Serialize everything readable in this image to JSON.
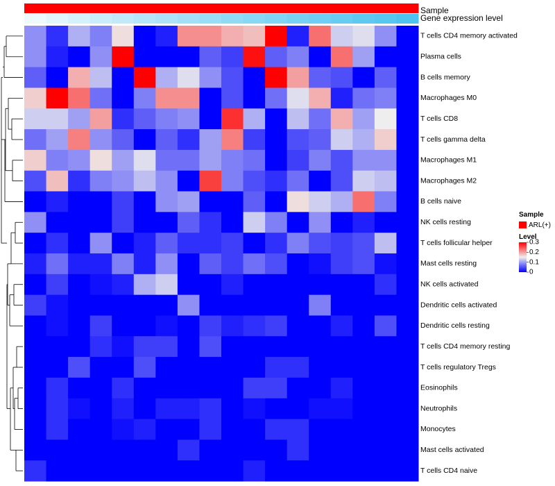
{
  "chart_data": {
    "type": "heatmap",
    "title": "",
    "annotation_tracks": [
      {
        "name": "Sample",
        "value": "ARL(+)",
        "color": "#ff0000"
      },
      {
        "name": "Gene expression level",
        "value": "increasing",
        "color_low": "#ffffff",
        "color_high": "#4fc3f0"
      }
    ],
    "rows": [
      "T cells CD4 memory activated",
      "Plasma cells",
      "B cells memory",
      "Macrophages M0",
      "T cells CD8",
      "T cells gamma delta",
      "Macrophages M1",
      "Macrophages M2",
      "B cells naive",
      "NK cells resting",
      "T cells follicular helper",
      "Mast cells resting",
      "NK cells activated",
      "Dendritic cells activated",
      "Dendritic cells resting",
      "T cells CD4 memory resting",
      "T cells regulatory  Tregs",
      "Eosinophils",
      "Neutrophils",
      "Monocytes",
      "Mast cells activated",
      "T cells CD4 naive"
    ],
    "n_columns": 18,
    "values": [
      [
        0.09,
        0.03,
        0.11,
        0.08,
        0.16,
        0.0,
        0.02,
        0.21,
        0.21,
        0.19,
        0.18,
        0.3,
        0.02,
        0.23,
        0.13,
        0.14,
        0.09,
        0.0
      ],
      [
        0.09,
        0.02,
        0.0,
        0.09,
        0.3,
        0.0,
        0.0,
        0.0,
        0.06,
        0.04,
        0.29,
        0.06,
        0.08,
        0.0,
        0.23,
        0.1,
        0.0,
        0.0
      ],
      [
        0.06,
        0.0,
        0.19,
        0.12,
        0.0,
        0.3,
        0.11,
        0.14,
        0.09,
        0.05,
        0.0,
        0.3,
        0.2,
        0.06,
        0.05,
        0.0,
        0.06,
        0.0
      ],
      [
        0.17,
        0.3,
        0.23,
        0.07,
        0.0,
        0.08,
        0.21,
        0.21,
        0.0,
        0.05,
        0.0,
        0.07,
        0.14,
        0.19,
        0.02,
        0.07,
        0.08,
        0.0
      ],
      [
        0.13,
        0.13,
        0.1,
        0.2,
        0.03,
        0.06,
        0.08,
        0.09,
        0.0,
        0.27,
        0.11,
        0.0,
        0.12,
        0.07,
        0.19,
        0.1,
        0.15,
        0.0
      ],
      [
        0.07,
        0.1,
        0.22,
        0.09,
        0.06,
        0.0,
        0.06,
        0.03,
        0.1,
        0.22,
        0.04,
        0.0,
        0.05,
        0.06,
        0.13,
        0.11,
        0.17,
        0.0
      ],
      [
        0.17,
        0.08,
        0.09,
        0.16,
        0.1,
        0.14,
        0.07,
        0.07,
        0.1,
        0.08,
        0.07,
        0.0,
        0.04,
        0.08,
        0.05,
        0.09,
        0.09,
        0.0
      ],
      [
        0.05,
        0.18,
        0.03,
        0.08,
        0.09,
        0.12,
        0.09,
        0.0,
        0.26,
        0.08,
        0.05,
        0.03,
        0.07,
        0.0,
        0.05,
        0.13,
        0.12,
        0.0
      ],
      [
        0.0,
        0.02,
        0.0,
        0.0,
        0.04,
        0.0,
        0.09,
        0.1,
        0.0,
        0.0,
        0.06,
        0.0,
        0.16,
        0.13,
        0.11,
        0.23,
        0.08,
        0.0
      ],
      [
        0.09,
        0.0,
        0.0,
        0.0,
        0.04,
        0.0,
        0.0,
        0.06,
        0.03,
        0.0,
        0.13,
        0.08,
        0.0,
        0.09,
        0.0,
        0.02,
        0.0,
        0.0
      ],
      [
        0.0,
        0.03,
        0.0,
        0.09,
        0.0,
        0.02,
        0.06,
        0.03,
        0.03,
        0.04,
        0.0,
        0.03,
        0.08,
        0.05,
        0.04,
        0.05,
        0.12,
        0.0
      ],
      [
        0.02,
        0.07,
        0.02,
        0.02,
        0.08,
        0.02,
        0.09,
        0.0,
        0.06,
        0.04,
        0.07,
        0.05,
        0.0,
        0.01,
        0.04,
        0.05,
        0.01,
        0.0
      ],
      [
        0.0,
        0.04,
        0.0,
        0.01,
        0.02,
        0.11,
        0.13,
        0.0,
        0.0,
        0.02,
        0.0,
        0.0,
        0.0,
        0.0,
        0.0,
        0.0,
        0.03,
        0.0
      ],
      [
        0.04,
        0.01,
        0.0,
        0.0,
        0.0,
        0.0,
        0.0,
        0.09,
        0.0,
        0.0,
        0.0,
        0.0,
        0.0,
        0.08,
        0.0,
        0.0,
        0.0,
        0.0
      ],
      [
        0.0,
        0.01,
        0.0,
        0.04,
        0.0,
        0.0,
        0.01,
        0.0,
        0.04,
        0.02,
        0.03,
        0.04,
        0.0,
        0.0,
        0.02,
        0.0,
        0.05,
        0.0
      ],
      [
        0.0,
        0.0,
        0.0,
        0.03,
        0.01,
        0.04,
        0.04,
        0.0,
        0.05,
        0.0,
        0.0,
        0.0,
        0.0,
        0.0,
        0.0,
        0.0,
        0.0,
        0.0
      ],
      [
        0.0,
        0.0,
        0.05,
        0.0,
        0.0,
        0.05,
        0.0,
        0.0,
        0.0,
        0.0,
        0.0,
        0.03,
        0.03,
        0.0,
        0.0,
        0.0,
        0.0,
        0.0
      ],
      [
        0.0,
        0.03,
        0.0,
        0.0,
        0.03,
        0.0,
        0.0,
        0.0,
        0.0,
        0.0,
        0.04,
        0.04,
        0.0,
        0.0,
        0.02,
        0.0,
        0.0,
        0.0
      ],
      [
        0.0,
        0.03,
        0.01,
        0.0,
        0.02,
        0.0,
        0.02,
        0.02,
        0.03,
        0.0,
        0.01,
        0.0,
        0.0,
        0.01,
        0.01,
        0.0,
        0.0,
        0.0
      ],
      [
        0.0,
        0.03,
        0.0,
        0.0,
        0.01,
        0.02,
        0.0,
        0.0,
        0.03,
        0.0,
        0.0,
        0.03,
        0.03,
        0.0,
        0.0,
        0.0,
        0.0,
        0.0
      ],
      [
        0.0,
        0.0,
        0.0,
        0.0,
        0.0,
        0.0,
        0.0,
        0.03,
        0.0,
        0.0,
        0.0,
        0.0,
        0.03,
        0.0,
        0.0,
        0.0,
        0.0,
        0.0
      ],
      [
        0.03,
        0.0,
        0.0,
        0.0,
        0.0,
        0.0,
        0.0,
        0.0,
        0.0,
        0.0,
        0.02,
        0.0,
        0.0,
        0.0,
        0.0,
        0.0,
        0.0,
        0.0
      ]
    ],
    "color_scale": {
      "min": 0,
      "mid": 0.15,
      "max": 0.3,
      "low": "#0000ff",
      "mid_color": "#eeeeee",
      "high": "#ff0000"
    },
    "legend": {
      "sample_title": "Sample",
      "sample_label": "ARL(+)",
      "sample_color": "#ff0000",
      "level_title": "Level",
      "ticks": [
        "0.3",
        "0.2",
        "0.1",
        "0"
      ],
      "tick_values": [
        0.3,
        0.2,
        0.1,
        0
      ],
      "placement": "right"
    },
    "row_dendrogram": true
  }
}
